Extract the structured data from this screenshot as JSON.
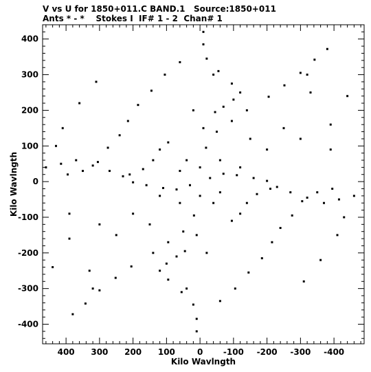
{
  "header": {
    "title_line1": "V vs U for 1850+011.C BAND.1   Source:1850+011",
    "title_line2": "Ants * - *    Stokes I  IF# 1 - 2  Chan# 1"
  },
  "chart_data": {
    "type": "scatter",
    "title": "V vs U for 1850+011.C BAND.1   Source:1850+011",
    "subtitle": "Ants * - *    Stokes I  IF# 1 - 2  Chan# 1",
    "xlabel": "Kilo Wavlngth",
    "ylabel": "Kilo Wavlngth",
    "xlim": [
      470,
      -490
    ],
    "ylim": [
      -455,
      440
    ],
    "x_inverted": true,
    "xticks": [
      400,
      300,
      200,
      100,
      0,
      -100,
      -200,
      -300,
      -400
    ],
    "xtick_labels": [
      "400",
      "300",
      "200",
      "100",
      "0",
      "-100",
      "-200",
      "-300",
      "-400"
    ],
    "yticks": [
      400,
      300,
      200,
      100,
      0,
      -100,
      -200,
      -300,
      -400
    ],
    "ytick_labels": [
      "400",
      "300",
      "200",
      "100",
      "0",
      "-100",
      "-200",
      "-300",
      "-400"
    ],
    "grid": false,
    "marker_color": "#000000",
    "series": [
      {
        "points": [
          [
            -380,
            372
          ],
          [
            -342,
            342
          ],
          [
            -300,
            305
          ],
          [
            -252,
            270
          ],
          [
            -205,
            238
          ],
          [
            -140,
            200
          ],
          [
            -95,
            170
          ],
          [
            -50,
            140
          ],
          [
            -18,
            95
          ],
          [
            0,
            40
          ],
          [
            380,
            -372
          ],
          [
            342,
            -342
          ],
          [
            300,
            -305
          ],
          [
            252,
            -270
          ],
          [
            205,
            -238
          ],
          [
            140,
            -200
          ],
          [
            95,
            -170
          ],
          [
            50,
            -140
          ],
          [
            18,
            -95
          ],
          [
            0,
            -40
          ],
          [
            -415,
            -50
          ],
          [
            -370,
            -60
          ],
          [
            -320,
            -45
          ],
          [
            -270,
            -30
          ],
          [
            -230,
            -15
          ],
          [
            -200,
            2
          ],
          [
            -160,
            10
          ],
          [
            -110,
            18
          ],
          [
            -70,
            22
          ],
          [
            -30,
            10
          ],
          [
            415,
            50
          ],
          [
            370,
            60
          ],
          [
            320,
            45
          ],
          [
            270,
            30
          ],
          [
            230,
            15
          ],
          [
            200,
            -2
          ],
          [
            160,
            -10
          ],
          [
            110,
            -18
          ],
          [
            70,
            -22
          ],
          [
            30,
            -10
          ],
          [
            -10,
            420
          ],
          [
            -10,
            385
          ],
          [
            -20,
            345
          ],
          [
            -55,
            310
          ],
          [
            -40,
            300
          ],
          [
            -120,
            250
          ],
          [
            -95,
            275
          ],
          [
            -100,
            230
          ],
          [
            -70,
            210
          ],
          [
            -45,
            195
          ],
          [
            10,
            -420
          ],
          [
            10,
            -385
          ],
          [
            20,
            -345
          ],
          [
            55,
            -310
          ],
          [
            40,
            -300
          ],
          [
            120,
            -250
          ],
          [
            95,
            -275
          ],
          [
            100,
            -230
          ],
          [
            70,
            -210
          ],
          [
            45,
            -195
          ],
          [
            -440,
            240
          ],
          [
            -320,
            300
          ],
          [
            -330,
            250
          ],
          [
            -390,
            160
          ],
          [
            -390,
            90
          ],
          [
            -460,
            -40
          ],
          [
            -430,
            -100
          ],
          [
            -410,
            -150
          ],
          [
            -360,
            -220
          ],
          [
            -310,
            -280
          ],
          [
            440,
            -240
          ],
          [
            320,
            -300
          ],
          [
            330,
            -250
          ],
          [
            390,
            -160
          ],
          [
            390,
            -90
          ],
          [
            460,
            40
          ],
          [
            430,
            100
          ],
          [
            410,
            150
          ],
          [
            360,
            220
          ],
          [
            310,
            280
          ],
          [
            60,
            335
          ],
          [
            105,
            300
          ],
          [
            145,
            255
          ],
          [
            185,
            215
          ],
          [
            215,
            170
          ],
          [
            240,
            130
          ],
          [
            275,
            95
          ],
          [
            305,
            55
          ],
          [
            350,
            30
          ],
          [
            395,
            20
          ],
          [
            -60,
            -335
          ],
          [
            -105,
            -300
          ],
          [
            -145,
            -255
          ],
          [
            -185,
            -215
          ],
          [
            -215,
            -170
          ],
          [
            -240,
            -130
          ],
          [
            -275,
            -95
          ],
          [
            -305,
            -55
          ],
          [
            -350,
            -30
          ],
          [
            -395,
            -20
          ],
          [
            95,
            110
          ],
          [
            120,
            90
          ],
          [
            140,
            60
          ],
          [
            170,
            35
          ],
          [
            210,
            20
          ],
          [
            -95,
            -110
          ],
          [
            -120,
            -90
          ],
          [
            -140,
            -60
          ],
          [
            -170,
            -35
          ],
          [
            -210,
            -20
          ],
          [
            40,
            60
          ],
          [
            60,
            30
          ],
          [
            -40,
            -60
          ],
          [
            -60,
            -30
          ],
          [
            -150,
            120
          ],
          [
            150,
            -120
          ],
          [
            -200,
            90
          ],
          [
            200,
            -90
          ],
          [
            -250,
            150
          ],
          [
            250,
            -150
          ],
          [
            -10,
            150
          ],
          [
            10,
            -150
          ],
          [
            -60,
            60
          ],
          [
            60,
            -60
          ],
          [
            -120,
            40
          ],
          [
            120,
            -40
          ],
          [
            -20,
            -200
          ],
          [
            20,
            200
          ],
          [
            -300,
            120
          ],
          [
            300,
            -120
          ]
        ]
      }
    ]
  }
}
